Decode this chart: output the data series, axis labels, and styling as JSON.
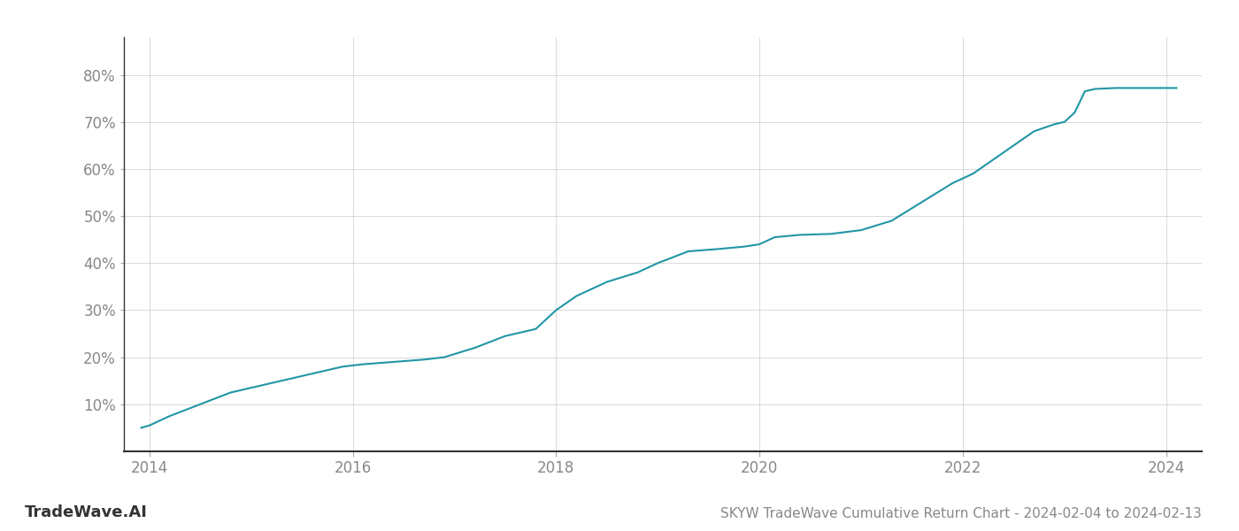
{
  "title": "SKYW TradeWave Cumulative Return Chart - 2024-02-04 to 2024-02-13",
  "watermark": "TradeWave.AI",
  "line_color": "#2196a6",
  "background_color": "#ffffff",
  "grid_color": "#cccccc",
  "x_values": [
    2013.92,
    2014.0,
    2014.2,
    2014.5,
    2014.8,
    2015.0,
    2015.3,
    2015.6,
    2015.9,
    2016.1,
    2016.4,
    2016.7,
    2016.9,
    2017.2,
    2017.5,
    2017.8,
    2018.0,
    2018.2,
    2018.5,
    2018.8,
    2019.0,
    2019.3,
    2019.6,
    2019.85,
    2020.0,
    2020.15,
    2020.4,
    2020.7,
    2021.0,
    2021.3,
    2021.6,
    2021.9,
    2022.1,
    2022.3,
    2022.5,
    2022.7,
    2022.9,
    2023.0,
    2023.1,
    2023.2,
    2023.3,
    2023.5,
    2023.7,
    2023.9,
    2024.0,
    2024.1
  ],
  "y_values": [
    5.0,
    5.5,
    7.5,
    10.0,
    12.5,
    13.5,
    15.0,
    16.5,
    18.0,
    18.5,
    19.0,
    19.5,
    20.0,
    22.0,
    24.5,
    26.0,
    30.0,
    33.0,
    36.0,
    38.0,
    40.0,
    42.5,
    43.0,
    43.5,
    44.0,
    45.5,
    46.0,
    46.2,
    47.0,
    49.0,
    53.0,
    57.0,
    59.0,
    62.0,
    65.0,
    68.0,
    69.5,
    70.0,
    72.0,
    76.5,
    77.0,
    77.2,
    77.2,
    77.2,
    77.2,
    77.2
  ],
  "xlim": [
    2013.75,
    2024.35
  ],
  "ylim": [
    0,
    88
  ],
  "yticks": [
    10,
    20,
    30,
    40,
    50,
    60,
    70,
    80
  ],
  "ytick_labels": [
    "10%",
    "20%",
    "30%",
    "40%",
    "50%",
    "60%",
    "70%",
    "80%"
  ],
  "xticks": [
    2014,
    2016,
    2018,
    2020,
    2022,
    2024
  ],
  "xtick_labels": [
    "2014",
    "2016",
    "2018",
    "2020",
    "2022",
    "2024"
  ],
  "line_width": 1.5,
  "title_fontsize": 11,
  "tick_fontsize": 12,
  "watermark_fontsize": 13
}
